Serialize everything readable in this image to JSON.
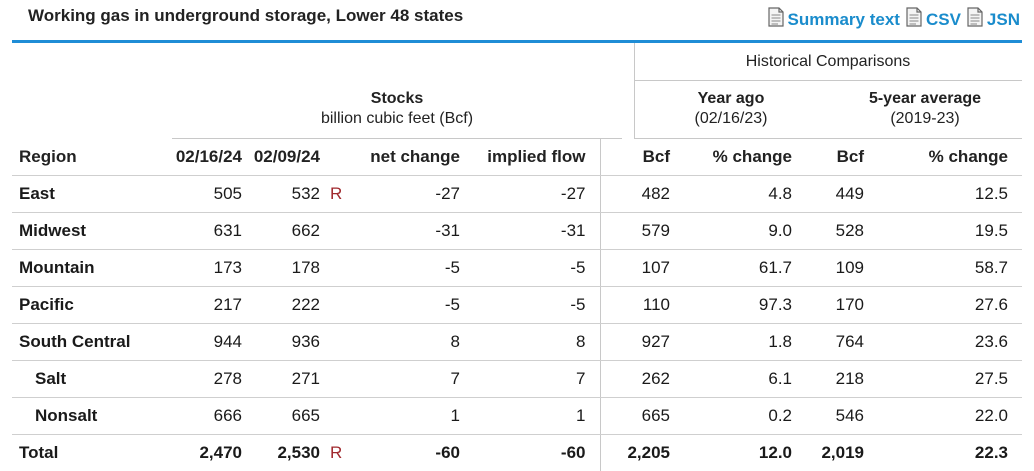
{
  "header": {
    "title": "Working gas in underground storage, Lower 48 states",
    "links": [
      {
        "label": "Summary text",
        "icon": "document-icon"
      },
      {
        "label": "CSV",
        "icon": "document-icon"
      },
      {
        "label": "JSN",
        "icon": "document-icon"
      }
    ]
  },
  "groups": {
    "historical": "Historical Comparisons",
    "stocks_title": "Stocks",
    "stocks_sub": "billion cubic feet (Bcf)",
    "year_ago_title": "Year ago",
    "year_ago_sub": "(02/16/23)",
    "five_year_title": "5-year average",
    "five_year_sub": "(2019-23)"
  },
  "columns": [
    "Region",
    "02/16/24",
    "02/09/24",
    "net change",
    "implied flow",
    "Bcf",
    "% change",
    "Bcf",
    "% change"
  ],
  "revision_marker": "R",
  "rows": [
    {
      "region": "East",
      "c1": "505",
      "c2": "532",
      "rev": "R",
      "net": "-27",
      "flow": "-27",
      "ya_bcf": "482",
      "ya_pct": "4.8",
      "fy_bcf": "449",
      "fy_pct": "12.5"
    },
    {
      "region": "Midwest",
      "c1": "631",
      "c2": "662",
      "rev": "",
      "net": "-31",
      "flow": "-31",
      "ya_bcf": "579",
      "ya_pct": "9.0",
      "fy_bcf": "528",
      "fy_pct": "19.5"
    },
    {
      "region": "Mountain",
      "c1": "173",
      "c2": "178",
      "rev": "",
      "net": "-5",
      "flow": "-5",
      "ya_bcf": "107",
      "ya_pct": "61.7",
      "fy_bcf": "109",
      "fy_pct": "58.7"
    },
    {
      "region": "Pacific",
      "c1": "217",
      "c2": "222",
      "rev": "",
      "net": "-5",
      "flow": "-5",
      "ya_bcf": "110",
      "ya_pct": "97.3",
      "fy_bcf": "170",
      "fy_pct": "27.6"
    },
    {
      "region": "South Central",
      "c1": "944",
      "c2": "936",
      "rev": "",
      "net": "8",
      "flow": "8",
      "ya_bcf": "927",
      "ya_pct": "1.8",
      "fy_bcf": "764",
      "fy_pct": "23.6"
    },
    {
      "region": "Salt",
      "c1": "278",
      "c2": "271",
      "rev": "",
      "net": "7",
      "flow": "7",
      "ya_bcf": "262",
      "ya_pct": "6.1",
      "fy_bcf": "218",
      "fy_pct": "27.5"
    },
    {
      "region": "Nonsalt",
      "c1": "666",
      "c2": "665",
      "rev": "",
      "net": "1",
      "flow": "1",
      "ya_bcf": "665",
      "ya_pct": "0.2",
      "fy_bcf": "546",
      "fy_pct": "22.0"
    }
  ],
  "total": {
    "region": "Total",
    "c1": "2,470",
    "c2": "2,530",
    "rev": "R",
    "net": "-60",
    "flow": "-60",
    "ya_bcf": "2,205",
    "ya_pct": "12.0",
    "fy_bcf": "2,019",
    "fy_pct": "22.3"
  },
  "colors": {
    "accent": "#1f8dd6",
    "link": "#1a8ccc",
    "revision": "#a0282d"
  }
}
